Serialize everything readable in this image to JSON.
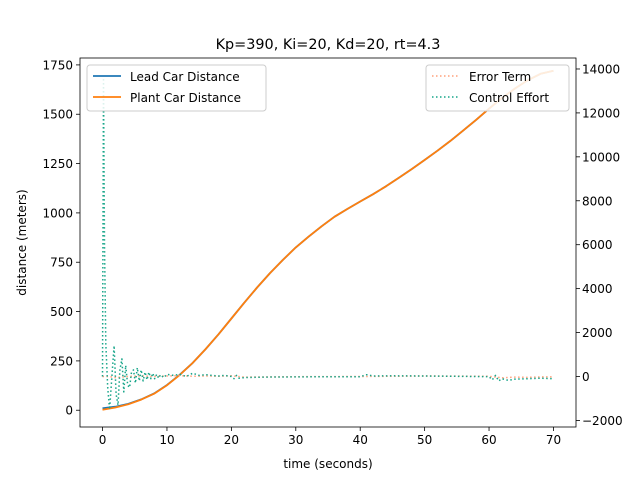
{
  "chart_data": {
    "type": "line",
    "title": "Kp=390, Ki=20, Kd=20, rt=4.3",
    "xlabel": "time (seconds)",
    "ylabel": "distance (meters)",
    "y2label": "",
    "xlim": [
      -3.5,
      73.5
    ],
    "ylim": [
      -85,
      1785
    ],
    "y2lim": [
      -2300,
      14500
    ],
    "xticks": [
      0,
      10,
      20,
      30,
      40,
      50,
      60,
      70
    ],
    "yticks": [
      0,
      250,
      500,
      750,
      1000,
      1250,
      1500,
      1750
    ],
    "y2ticks": [
      -2000,
      0,
      2000,
      4000,
      6000,
      8000,
      10000,
      12000,
      14000
    ],
    "y2tick_highlight": {
      "value": -2000,
      "color": "#ff0000"
    },
    "legend_left": [
      "Lead Car Distance",
      "Plant Car Distance"
    ],
    "legend_right": [
      "Error Term",
      "Control Effort"
    ],
    "series": [
      {
        "name": "Lead Car Distance",
        "axis": "left",
        "color": "#1f77b4",
        "style": "solid",
        "x": [
          0,
          2,
          4,
          6,
          8,
          10,
          12,
          14,
          16,
          18,
          20,
          22,
          24,
          26,
          28,
          30,
          32,
          34,
          36,
          38,
          40,
          42,
          44,
          46,
          48,
          50,
          52,
          54,
          56,
          58,
          60,
          62,
          64,
          66,
          68,
          70
        ],
        "y": [
          10,
          18,
          32,
          55,
          85,
          128,
          180,
          240,
          310,
          385,
          465,
          545,
          622,
          695,
          762,
          825,
          880,
          932,
          980,
          1020,
          1058,
          1095,
          1135,
          1178,
          1222,
          1268,
          1315,
          1365,
          1418,
          1472,
          1528,
          1582,
          1630,
          1672,
          1705,
          1720
        ]
      },
      {
        "name": "Plant Car Distance",
        "axis": "left",
        "color": "#ff7f0e",
        "style": "solid",
        "x": [
          0,
          2,
          4,
          6,
          8,
          10,
          12,
          14,
          16,
          18,
          20,
          22,
          24,
          26,
          28,
          30,
          32,
          34,
          36,
          38,
          40,
          42,
          44,
          46,
          48,
          50,
          52,
          54,
          56,
          58,
          60,
          62,
          64,
          66,
          68,
          70
        ],
        "y": [
          2,
          14,
          30,
          54,
          84,
          127,
          179,
          240,
          310,
          385,
          465,
          545,
          622,
          695,
          762,
          825,
          880,
          932,
          980,
          1020,
          1058,
          1095,
          1135,
          1178,
          1222,
          1268,
          1315,
          1365,
          1418,
          1472,
          1528,
          1582,
          1630,
          1672,
          1705,
          1720
        ]
      },
      {
        "name": "Error Term",
        "axis": "right",
        "color": "#ffa07a",
        "style": "dotted",
        "x": [
          0,
          0.5,
          1,
          2,
          4,
          6,
          8,
          10,
          12,
          14,
          16,
          18,
          20,
          22,
          30,
          40,
          50,
          60,
          62,
          64,
          66,
          68,
          70
        ],
        "y": [
          0,
          0,
          0,
          -50,
          0,
          30,
          0,
          20,
          40,
          10,
          20,
          10,
          30,
          -30,
          -10,
          0,
          20,
          10,
          -60,
          -30,
          -40,
          -20,
          -20
        ]
      },
      {
        "name": "Control Effort",
        "axis": "right",
        "color": "#17a589",
        "style": "dotted",
        "x": [
          0,
          0.15,
          0.3,
          0.5,
          0.8,
          1.1,
          1.5,
          1.8,
          2.1,
          2.4,
          2.7,
          3.0,
          3.3,
          3.6,
          3.9,
          4.2,
          4.5,
          4.8,
          5.1,
          5.4,
          5.7,
          6.0,
          6.3,
          6.6,
          6.9,
          7.2,
          7.5,
          7.8,
          8.1,
          8.4,
          8.7,
          9.0,
          9.5,
          10,
          11,
          12,
          13,
          14,
          15,
          16,
          17,
          18,
          19,
          20,
          20.4,
          20.8,
          21.2,
          22,
          25,
          30,
          35,
          40,
          41,
          42,
          45,
          50,
          55,
          60,
          60.5,
          61,
          61.5,
          62,
          63,
          64,
          66,
          68,
          70
        ],
        "y": [
          0,
          13600,
          6000,
          1500,
          -500,
          -1500,
          200,
          1400,
          -800,
          -1300,
          300,
          800,
          -700,
          500,
          -400,
          -500,
          200,
          300,
          -300,
          400,
          -200,
          300,
          -200,
          200,
          -150,
          200,
          -100,
          150,
          -100,
          100,
          -80,
          80,
          -50,
          100,
          50,
          100,
          0,
          150,
          50,
          80,
          50,
          20,
          50,
          0,
          -100,
          50,
          -80,
          -50,
          -30,
          -20,
          -10,
          -10,
          80,
          20,
          30,
          20,
          10,
          -10,
          -150,
          50,
          -200,
          -100,
          -180,
          -120,
          -100,
          -80,
          -100
        ]
      }
    ]
  }
}
